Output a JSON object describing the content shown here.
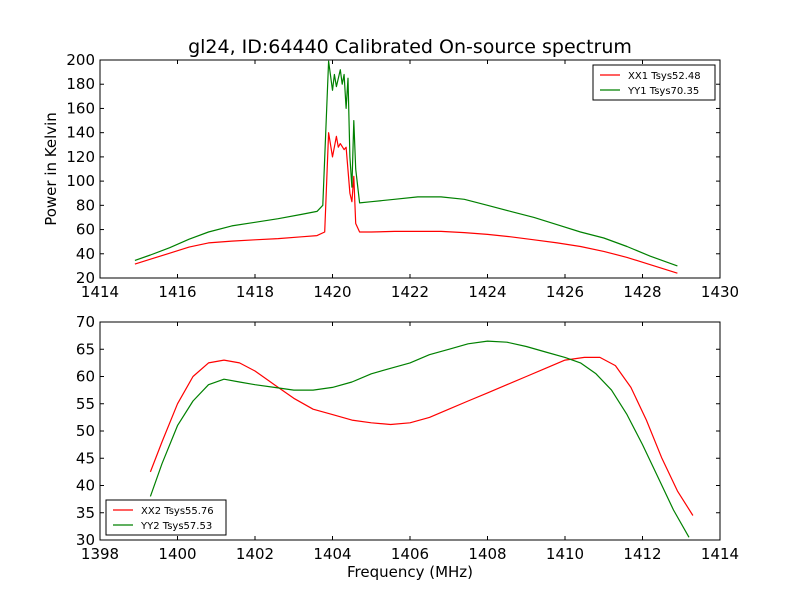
{
  "figure_title": "gl24, ID:64440 Calibrated On-source spectrum",
  "chart_data": [
    {
      "type": "line",
      "title": "gl24, ID:64440 Calibrated On-source spectrum",
      "xlabel": "",
      "ylabel": "Power in Kelvin",
      "xlim": [
        1414,
        1430
      ],
      "ylim": [
        20,
        200
      ],
      "xticks": [
        1414,
        1416,
        1418,
        1420,
        1422,
        1424,
        1426,
        1428,
        1430
      ],
      "yticks": [
        20,
        40,
        60,
        80,
        100,
        120,
        140,
        160,
        180,
        200
      ],
      "grid": false,
      "legend_position": "top-right",
      "series": [
        {
          "name": "XX1 Tsys52.48",
          "color": "#ff0000",
          "x": [
            1414.9,
            1415.3,
            1415.8,
            1416.3,
            1416.8,
            1417.4,
            1418.0,
            1418.6,
            1419.2,
            1419.6,
            1419.8,
            1419.85,
            1419.9,
            1420.0,
            1420.1,
            1420.15,
            1420.2,
            1420.3,
            1420.35,
            1420.45,
            1420.5,
            1420.55,
            1420.6,
            1420.7,
            1421.0,
            1421.6,
            1422.2,
            1422.8,
            1423.4,
            1424.0,
            1424.6,
            1425.2,
            1425.8,
            1426.4,
            1427.0,
            1427.6,
            1428.2,
            1428.9
          ],
          "values": [
            31.5,
            35.5,
            40.5,
            45.5,
            49,
            50.5,
            51.5,
            52.5,
            54,
            55,
            58,
            100,
            140,
            120,
            137,
            128,
            131,
            126,
            128,
            90,
            83,
            104,
            65,
            58,
            58,
            58.5,
            58.5,
            58.5,
            57.5,
            56,
            54,
            51.5,
            49,
            46,
            42,
            37,
            31,
            24
          ]
        },
        {
          "name": "YY1 Tsys70.35",
          "color": "#008000",
          "x": [
            1414.9,
            1415.3,
            1415.8,
            1416.3,
            1416.8,
            1417.4,
            1418.0,
            1418.6,
            1419.2,
            1419.6,
            1419.75,
            1419.85,
            1419.9,
            1420.0,
            1420.05,
            1420.1,
            1420.2,
            1420.25,
            1420.3,
            1420.35,
            1420.4,
            1420.45,
            1420.5,
            1420.55,
            1420.6,
            1420.7,
            1421.0,
            1421.6,
            1422.2,
            1422.8,
            1423.4,
            1424.0,
            1424.6,
            1425.2,
            1425.8,
            1426.4,
            1427.0,
            1427.6,
            1428.2,
            1428.9
          ],
          "values": [
            34.5,
            39,
            45,
            52,
            58,
            63,
            66,
            69,
            72.5,
            75,
            80,
            160,
            199,
            175,
            188,
            178,
            192,
            180,
            188,
            160,
            185,
            120,
            95,
            150,
            110,
            82,
            83,
            85,
            87,
            87,
            85,
            80,
            75,
            70,
            64,
            58,
            53,
            46,
            38,
            30
          ]
        }
      ]
    },
    {
      "type": "line",
      "title": "",
      "xlabel": "Frequency (MHz)",
      "ylabel": "",
      "xlim": [
        1398,
        1414
      ],
      "ylim": [
        30,
        70
      ],
      "xticks": [
        1398,
        1400,
        1402,
        1404,
        1406,
        1408,
        1410,
        1412,
        1414
      ],
      "yticks": [
        30,
        35,
        40,
        45,
        50,
        55,
        60,
        65,
        70
      ],
      "grid": false,
      "legend_position": "bottom-left",
      "series": [
        {
          "name": "XX2 Tsys55.76",
          "color": "#ff0000",
          "x": [
            1399.3,
            1399.6,
            1400.0,
            1400.4,
            1400.8,
            1401.2,
            1401.6,
            1402.0,
            1402.5,
            1403.0,
            1403.5,
            1404.0,
            1404.5,
            1405.0,
            1405.5,
            1406.0,
            1406.5,
            1407.0,
            1407.5,
            1408.0,
            1408.5,
            1409.0,
            1409.5,
            1410.0,
            1410.5,
            1410.9,
            1411.3,
            1411.7,
            1412.1,
            1412.5,
            1412.9,
            1413.3
          ],
          "values": [
            42.5,
            48,
            55,
            60,
            62.5,
            63,
            62.5,
            61,
            58.5,
            56,
            54,
            53,
            52,
            51.5,
            51.2,
            51.5,
            52.5,
            54,
            55.5,
            57,
            58.5,
            60,
            61.5,
            63,
            63.5,
            63.5,
            62,
            58,
            52,
            45,
            39,
            34.5
          ]
        },
        {
          "name": "YY2 Tsys57.53",
          "color": "#008000",
          "x": [
            1399.3,
            1399.6,
            1400.0,
            1400.4,
            1400.8,
            1401.2,
            1401.6,
            1402.0,
            1402.5,
            1403.0,
            1403.5,
            1404.0,
            1404.5,
            1405.0,
            1405.5,
            1406.0,
            1406.5,
            1407.0,
            1407.5,
            1408.0,
            1408.5,
            1409.0,
            1409.5,
            1410.0,
            1410.4,
            1410.8,
            1411.2,
            1411.6,
            1412.0,
            1412.4,
            1412.8,
            1413.2
          ],
          "values": [
            38,
            44,
            51,
            55.5,
            58.5,
            59.5,
            59,
            58.5,
            58,
            57.5,
            57.5,
            58,
            59,
            60.5,
            61.5,
            62.5,
            64,
            65,
            66,
            66.5,
            66.3,
            65.5,
            64.5,
            63.5,
            62.5,
            60.5,
            57.5,
            53,
            47.5,
            41.5,
            35.5,
            30.5
          ]
        }
      ]
    }
  ]
}
